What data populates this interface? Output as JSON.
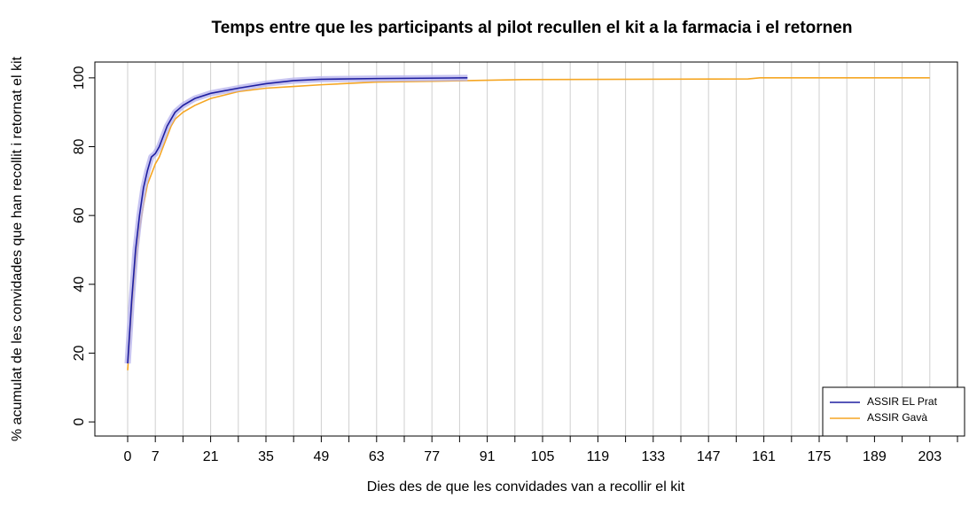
{
  "chart_data": {
    "type": "line",
    "title": "Temps entre que les participants al pilot recullen el kit a la farmacia i el retornen",
    "x_label": "Dies des de que les convidades van a recollir el kit",
    "y_label": "% acumulat de les convidades que han recollit i retornat el kit",
    "xlim": [
      -8.3,
      210
    ],
    "ylim": [
      -4.1,
      104.6
    ],
    "xticks": [
      0,
      7,
      21,
      35,
      49,
      63,
      77,
      91,
      105,
      119,
      133,
      147,
      161,
      175,
      189,
      203
    ],
    "xgrid": [
      0,
      7,
      14,
      21,
      28,
      35,
      42,
      49,
      56,
      63,
      70,
      77,
      84,
      91,
      98,
      105,
      112,
      119,
      126,
      133,
      140,
      147,
      154,
      161,
      168,
      175,
      182,
      189,
      196,
      203,
      210
    ],
    "yticks": [
      0,
      20,
      40,
      60,
      80,
      100
    ],
    "grid": true,
    "legend": "bottom-right",
    "series": [
      {
        "name": "ASSIR EL Prat",
        "color": "#1f1fa0",
        "x": [
          0,
          1,
          2,
          3,
          4,
          5,
          6,
          7,
          8,
          9,
          10,
          11,
          12,
          13,
          14,
          17,
          21,
          28,
          35,
          42,
          49,
          63,
          86
        ],
        "values": [
          17,
          35,
          50,
          60,
          68,
          73,
          77,
          78,
          80,
          83,
          86,
          88,
          90,
          91,
          92,
          94,
          95.5,
          97,
          98.3,
          99.2,
          99.6,
          99.8,
          100
        ]
      },
      {
        "name": "ASSIR Gavà",
        "color": "#f5a623",
        "x": [
          0,
          1,
          2,
          3,
          4,
          5,
          6,
          7,
          8,
          9,
          10,
          11,
          12,
          13,
          14,
          17,
          21,
          28,
          35,
          42,
          49,
          63,
          77,
          100,
          157,
          160,
          203
        ],
        "values": [
          15,
          32,
          46,
          56,
          63,
          69,
          72,
          75,
          77,
          80,
          83,
          86,
          88,
          89,
          90,
          92,
          94,
          96,
          97,
          97.5,
          98,
          98.8,
          99,
          99.5,
          99.7,
          100,
          100
        ]
      }
    ]
  }
}
